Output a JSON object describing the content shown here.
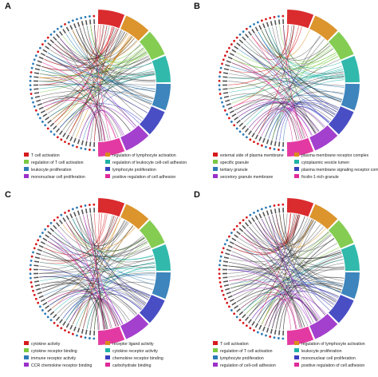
{
  "figure": {
    "panels": [
      {
        "letter": "A",
        "legend": [
          {
            "label": "T cell activation",
            "color": "#d7191c"
          },
          {
            "label": "regulation of lymphocyte activation",
            "color": "#d98b1a"
          },
          {
            "label": "regulation of T cell activation",
            "color": "#7ac943"
          },
          {
            "label": "regulation of leukocyte cell-cell adhesion",
            "color": "#1fb3a5"
          },
          {
            "label": "leukocyte proliferation",
            "color": "#2c7bb6"
          },
          {
            "label": "lymphocyte proliferation",
            "color": "#3a3fbf"
          },
          {
            "label": "mononuclear cell proliferation",
            "color": "#9b30c9"
          },
          {
            "label": "positive regulation of cell adhesion",
            "color": "#e0299a"
          }
        ]
      },
      {
        "letter": "B",
        "legend": [
          {
            "label": "external side of plasma membrane",
            "color": "#d7191c"
          },
          {
            "label": "plasma membrane receptor complex",
            "color": "#d98b1a"
          },
          {
            "label": "specific granule",
            "color": "#7ac943"
          },
          {
            "label": "cytoplasmic vesicle lumen",
            "color": "#1fb3a5"
          },
          {
            "label": "tertiary granule",
            "color": "#2c7bb6"
          },
          {
            "label": "plasma membrane signaling receptor complex",
            "color": "#3a3fbf"
          },
          {
            "label": "secretory granule membrane",
            "color": "#9b30c9"
          },
          {
            "label": "ficolin-1-rich granule",
            "color": "#e0299a"
          }
        ]
      },
      {
        "letter": "C",
        "legend": [
          {
            "label": "cytokine activity",
            "color": "#d7191c"
          },
          {
            "label": "receptor ligand activity",
            "color": "#d98b1a"
          },
          {
            "label": "cytokine receptor binding",
            "color": "#7ac943"
          },
          {
            "label": "cytokine receptor activity",
            "color": "#1fb3a5"
          },
          {
            "label": "immune receptor activity",
            "color": "#2c7bb6"
          },
          {
            "label": "chemokine receptor binding",
            "color": "#3a3fbf"
          },
          {
            "label": "CCR chemokine receptor binding",
            "color": "#9b30c9"
          },
          {
            "label": "carbohydrate binding",
            "color": "#e0299a"
          }
        ]
      },
      {
        "letter": "D",
        "legend": [
          {
            "label": "T cell activation",
            "color": "#d7191c"
          },
          {
            "label": "regulation of lymphocyte activation",
            "color": "#d98b1a"
          },
          {
            "label": "regulation of T cell activation",
            "color": "#7ac943"
          },
          {
            "label": "leukocyte proliferation",
            "color": "#1fb3a5"
          },
          {
            "label": "lymphocyte proliferation",
            "color": "#2c7bb6"
          },
          {
            "label": "mononuclear cell proliferation",
            "color": "#3a3fbf"
          },
          {
            "label": "regulation of cell-cell adhesion",
            "color": "#9b30c9"
          },
          {
            "label": "positive regulation of cell adhesion",
            "color": "#e0299a"
          }
        ]
      }
    ]
  }
}
